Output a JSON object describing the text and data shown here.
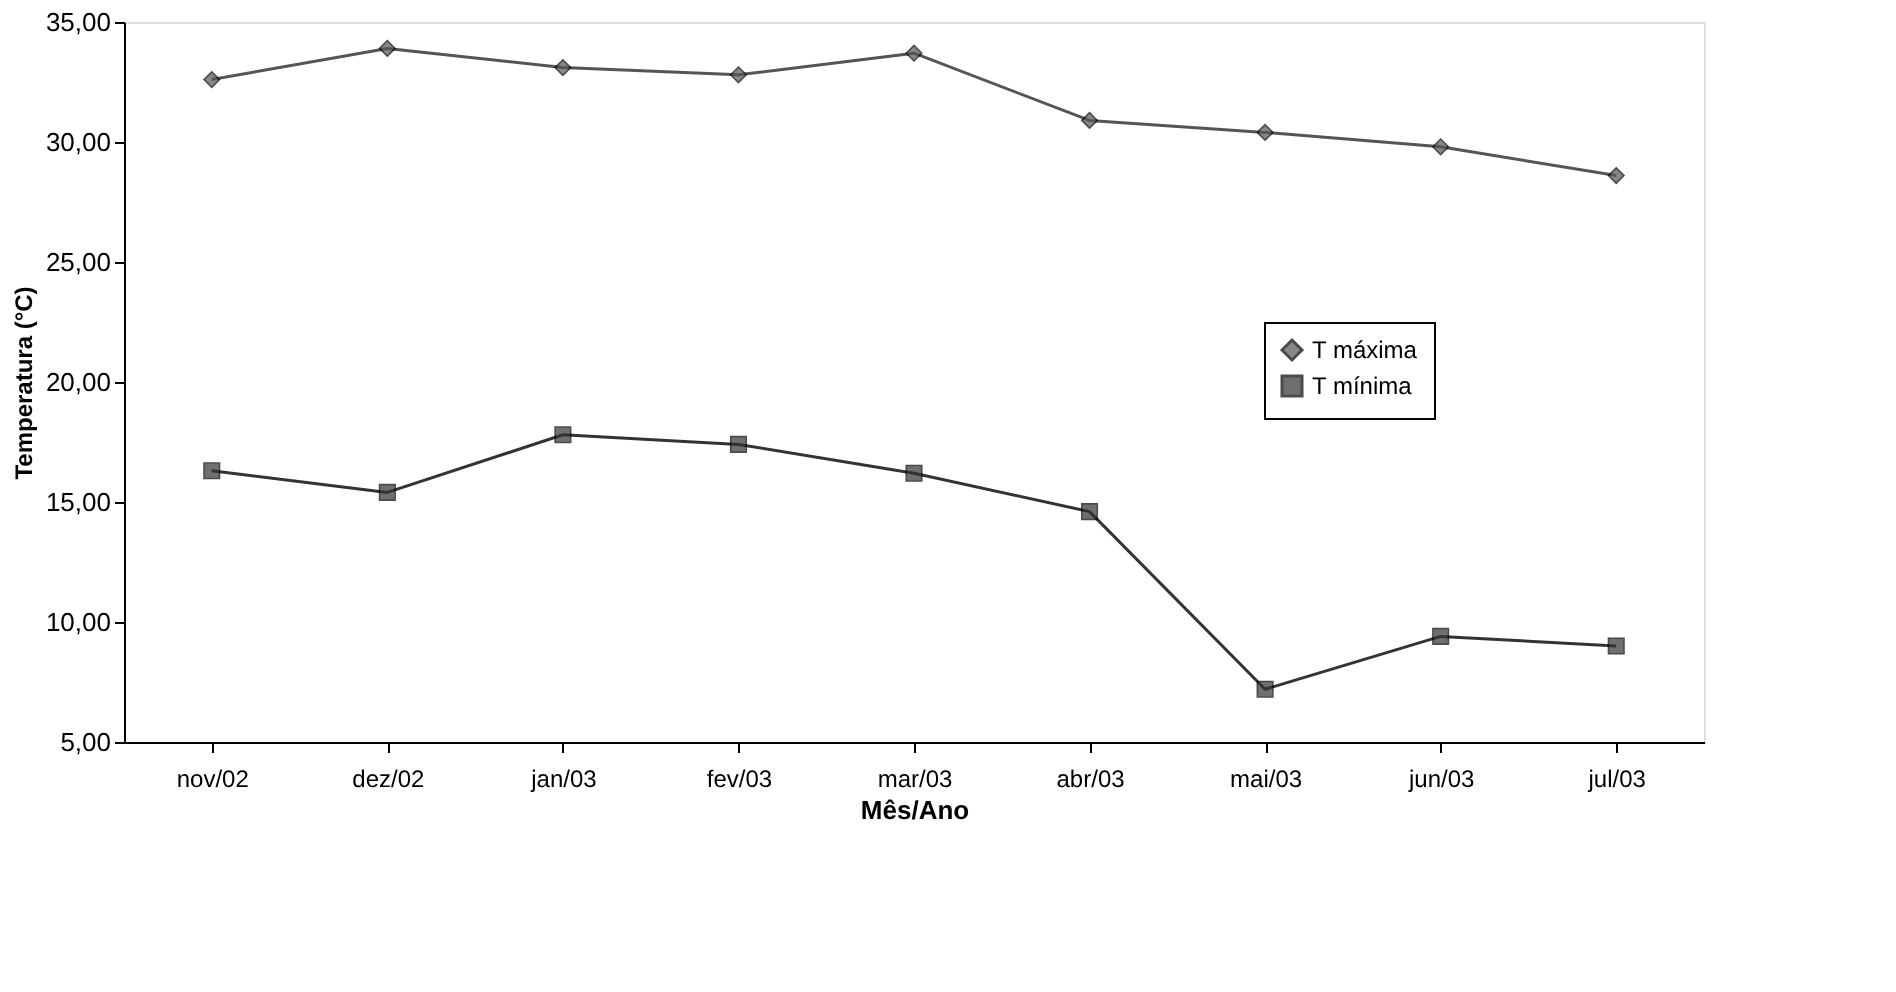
{
  "chart_data": {
    "type": "line",
    "xlabel": "Mês/Ano",
    "ylabel": "Temperatura (°C)",
    "categories": [
      "nov/02",
      "dez/02",
      "jan/03",
      "fev/03",
      "mar/03",
      "abr/03",
      "mai/03",
      "jun/03",
      "jul/03"
    ],
    "series": [
      {
        "name": "T máxima",
        "color": "#555555",
        "marker": "diamond",
        "values": [
          32.6,
          33.9,
          33.1,
          32.8,
          33.7,
          30.9,
          30.4,
          29.8,
          28.6
        ]
      },
      {
        "name": "T mínima",
        "color": "#333333",
        "marker": "square",
        "values": [
          16.3,
          15.4,
          17.8,
          17.4,
          16.2,
          14.6,
          7.2,
          9.4,
          9.0
        ]
      }
    ],
    "ylim": [
      5,
      35
    ],
    "yticks": [
      {
        "value": 5,
        "label": "5,00"
      },
      {
        "value": 10,
        "label": "10,00"
      },
      {
        "value": 15,
        "label": "15,00"
      },
      {
        "value": 20,
        "label": "20,00"
      },
      {
        "value": 25,
        "label": "25,00"
      },
      {
        "value": 30,
        "label": "30,00"
      },
      {
        "value": 35,
        "label": "35,00"
      }
    ],
    "grid": false,
    "legend": "right",
    "line_style": "solid"
  }
}
